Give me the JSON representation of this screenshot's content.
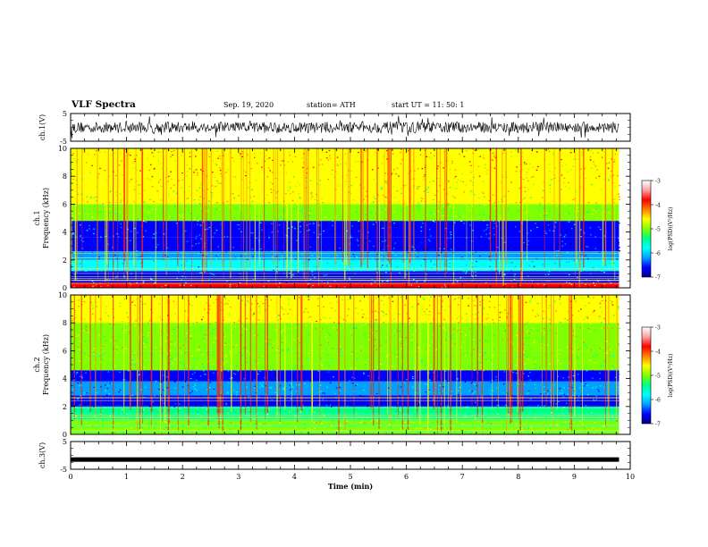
{
  "header": {
    "title": "VLF Spectra",
    "date": "Sep. 19, 2020",
    "station": "station= ATH",
    "start": "start UT =  11: 50: 1"
  },
  "colorbar": {
    "label": "log(PSD)(V²/Hz)",
    "ticks": [
      "-3",
      "-4",
      "-5",
      "-6",
      "-7"
    ],
    "colors": [
      "#000080",
      "#0000ff",
      "#00a0ff",
      "#00ffff",
      "#00ff80",
      "#80ff00",
      "#ffff00",
      "#ff8000",
      "#ff0000",
      "#ffa0a0",
      "#ffffff"
    ]
  },
  "chart_data": [
    {
      "type": "line",
      "name": "ch1-waveform",
      "ylabel": "ch.1(V)",
      "ylim": [
        -5,
        5
      ],
      "yticks": [
        "5",
        "-5"
      ],
      "xlim": [
        0,
        10
      ],
      "description_values": {
        "x_end": 9.8,
        "amplitude_typical": 2
      }
    },
    {
      "type": "heatmap",
      "name": "ch1-spectrogram",
      "ylabel_top": "ch.1",
      "ylabel": "Frequency (kHz)",
      "ylim": [
        0,
        10
      ],
      "yticks": [
        "0",
        "2",
        "4",
        "6",
        "8",
        "10"
      ],
      "xlim": [
        0,
        10
      ],
      "x_end": 9.8,
      "bands": [
        {
          "from": 0,
          "to": 0.4,
          "level": -3.8
        },
        {
          "from": 0.4,
          "to": 1.2,
          "level": -6.2
        },
        {
          "from": 1.2,
          "to": 2.0,
          "level": -5.6
        },
        {
          "from": 2.0,
          "to": 2.6,
          "level": -6.0
        },
        {
          "from": 2.6,
          "to": 3.6,
          "level": -6.6
        },
        {
          "from": 3.6,
          "to": 4.8,
          "level": -6.3
        },
        {
          "from": 4.8,
          "to": 6.0,
          "level": -5.0
        },
        {
          "from": 6.0,
          "to": 8.0,
          "level": -4.6
        },
        {
          "from": 8.0,
          "to": 10.0,
          "level": -4.3
        }
      ]
    },
    {
      "type": "heatmap",
      "name": "ch2-spectrogram",
      "ylabel_top": "ch.2",
      "ylabel": "Frequency (kHz)",
      "ylim": [
        0,
        10
      ],
      "yticks": [
        "0",
        "2",
        "4",
        "6",
        "8",
        "10"
      ],
      "xlim": [
        0,
        10
      ],
      "x_end": 9.8,
      "bands": [
        {
          "from": 0,
          "to": 1.0,
          "level": -4.8
        },
        {
          "from": 1.0,
          "to": 2.0,
          "level": -5.2
        },
        {
          "from": 2.0,
          "to": 2.8,
          "level": -6.6
        },
        {
          "from": 2.8,
          "to": 3.8,
          "level": -5.9
        },
        {
          "from": 3.8,
          "to": 4.6,
          "level": -6.4
        },
        {
          "from": 4.6,
          "to": 6.0,
          "level": -5.0
        },
        {
          "from": 6.0,
          "to": 8.0,
          "level": -4.7
        },
        {
          "from": 8.0,
          "to": 10.0,
          "level": -4.5
        }
      ]
    },
    {
      "type": "line",
      "name": "ch3-waveform",
      "ylabel": "ch.3(V)",
      "ylim": [
        -5,
        5
      ],
      "yticks": [
        "5",
        "-5"
      ],
      "xlim": [
        0,
        10
      ],
      "x_end": 9.8,
      "value": -1.5,
      "xlabel": "Time (min)",
      "xticks": [
        "0",
        "1",
        "2",
        "3",
        "4",
        "5",
        "6",
        "7",
        "8",
        "9",
        "10"
      ]
    }
  ]
}
